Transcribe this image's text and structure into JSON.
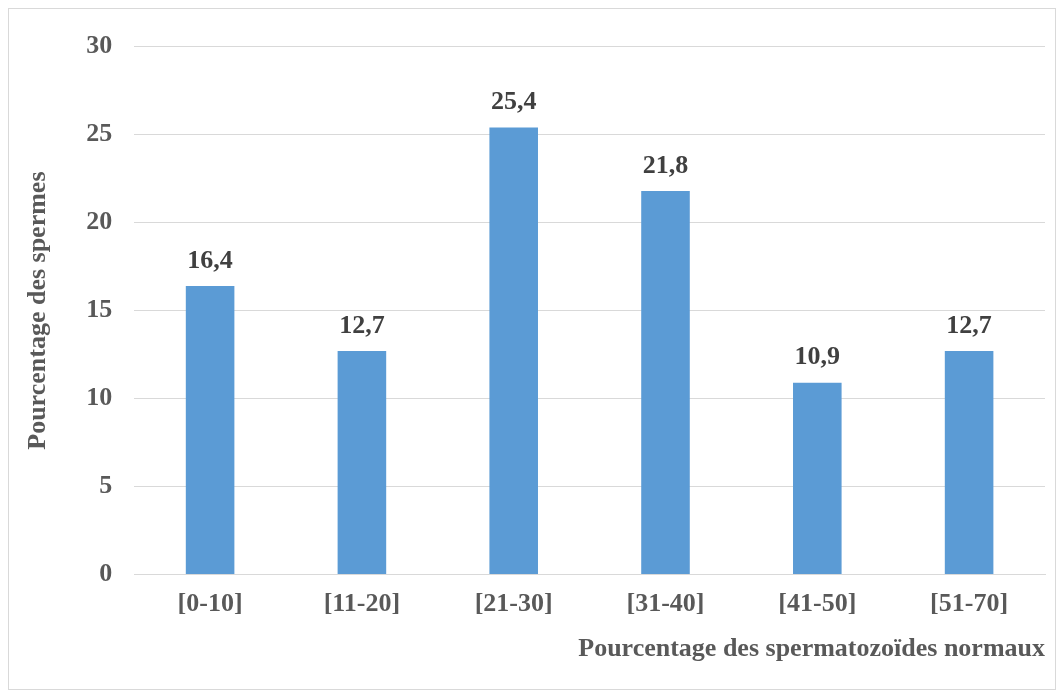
{
  "chart_data": {
    "type": "bar",
    "xlabel": "Pourcentage des spermatozoïdes normaux",
    "ylabel": "Pourcentage des spermes",
    "categories": [
      "[0-10]",
      "[11-20]",
      "[21-30]",
      "[31-40]",
      "[41-50]",
      "[51-70]"
    ],
    "values": [
      16.4,
      12.7,
      25.4,
      21.8,
      10.9,
      12.7
    ],
    "value_labels": [
      "16,4",
      "12,7",
      "25,4",
      "21,8",
      "10,9",
      "12,7"
    ],
    "color": "#5b9bd5",
    "ylim": [
      0,
      30
    ],
    "yticks": [
      0,
      5,
      10,
      15,
      20,
      25,
      30
    ],
    "grid": "y",
    "legend": false
  }
}
